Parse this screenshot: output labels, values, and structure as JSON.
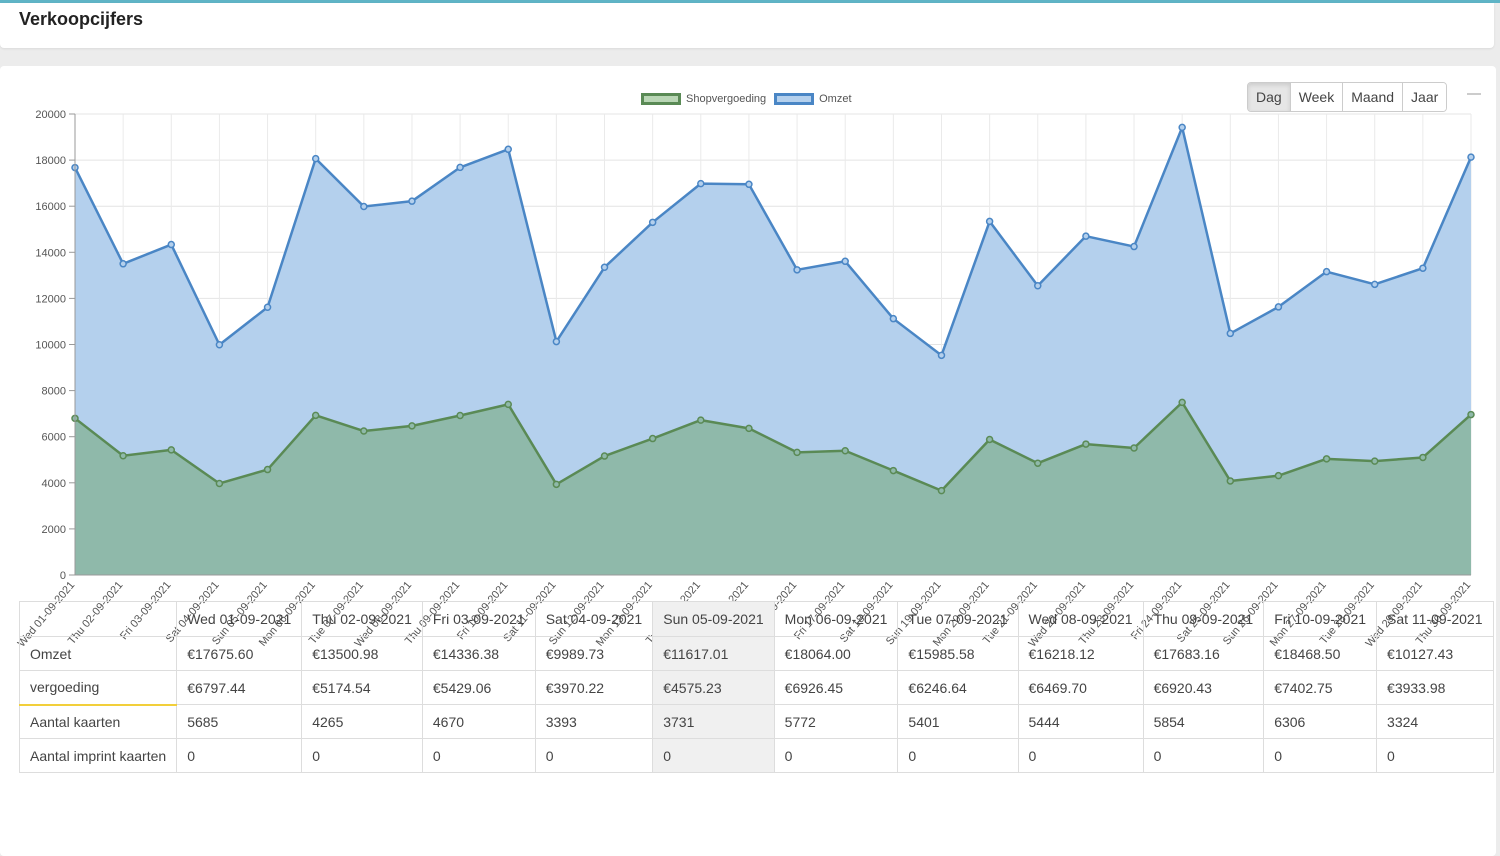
{
  "page": {
    "title": "Verkoopcijfers"
  },
  "period_buttons": [
    "Dag",
    "Week",
    "Maand",
    "Jaar"
  ],
  "chart_data": {
    "type": "area",
    "title": "",
    "xlabel": "",
    "ylabel": "",
    "ylim": [
      0,
      20000
    ],
    "yticks": [
      0,
      2000,
      4000,
      6000,
      8000,
      10000,
      12000,
      14000,
      16000,
      18000,
      20000
    ],
    "grid": true,
    "legend": "top-center",
    "categories": [
      "Wed 01-09-2021",
      "Thu 02-09-2021",
      "Fri 03-09-2021",
      "Sat 04-09-2021",
      "Sun 05-09-2021",
      "Mon 06-09-2021",
      "Tue 07-09-2021",
      "Wed 08-09-2021",
      "Thu 09-09-2021",
      "Fri 10-09-2021",
      "Sat 11-09-2021",
      "Sun 12-09-2021",
      "Mon 13-09-2021",
      "Tue 14-09-2021",
      "Wed 15-09-2021",
      "Thu 16-09-2021",
      "Fri 17-09-2021",
      "Sat 18-09-2021",
      "Sun 19-09-2021",
      "Mon 20-09-2021",
      "Tue 21-09-2021",
      "Wed 22-09-2021",
      "Thu 23-09-2021",
      "Fri 24-09-2021",
      "Sat 25-09-2021",
      "Sun 26-09-2021",
      "Mon 27-09-2021",
      "Tue 28-09-2021",
      "Wed 29-09-2021",
      "Thu 30-09-2021"
    ],
    "series": [
      {
        "name": "Omzet",
        "color": "#4a86c5",
        "fill": "#b4d0ed",
        "values": [
          17675.6,
          13500.98,
          14336.38,
          9989.73,
          11617.01,
          18064.0,
          15985.58,
          16218.12,
          17683.16,
          18468.5,
          10127.43,
          13350,
          15300,
          16980,
          16950,
          13240,
          13610,
          11120,
          9530,
          15340,
          12550,
          14700,
          14250,
          19420,
          10480,
          11630,
          13160,
          12610,
          13310,
          18130
        ]
      },
      {
        "name": "Shopvergoeding",
        "color": "#5a8a55",
        "fill": "#8fb9aa",
        "values": [
          6797.44,
          5174.54,
          5429.06,
          3970.22,
          4575.23,
          6926.45,
          6246.64,
          6469.7,
          6920.43,
          7402.75,
          3933.98,
          5160,
          5920,
          6720,
          6360,
          5320,
          5390,
          4530,
          3660,
          5880,
          4850,
          5680,
          5510,
          7490,
          4080,
          4310,
          5040,
          4940,
          5100,
          6960
        ]
      }
    ]
  },
  "table": {
    "columns": [
      "Wed 01-09-2021",
      "Thu 02-09-2021",
      "Fri 03-09-2021",
      "Sat 04-09-2021",
      "Sun 05-09-2021",
      "Mon 06-09-2021",
      "Tue 07-09-2021",
      "Wed 08-09-2021",
      "Thu 09-09-2021",
      "Fri 10-09-2021",
      "Sat 11-09-2021"
    ],
    "rows": [
      {
        "label": "Omzet",
        "values": [
          "€17675.60",
          "€13500.98",
          "€14336.38",
          "€9989.73",
          "€11617.01",
          "€18064.00",
          "€15985.58",
          "€16218.12",
          "€17683.16",
          "€18468.50",
          "€10127.43"
        ]
      },
      {
        "label": "vergoeding",
        "values": [
          "€6797.44",
          "€5174.54",
          "€5429.06",
          "€3970.22",
          "€4575.23",
          "€6926.45",
          "€6246.64",
          "€6469.70",
          "€6920.43",
          "€7402.75",
          "€3933.98"
        ]
      },
      {
        "label": "Aantal kaarten",
        "values": [
          "5685",
          "4265",
          "4670",
          "3393",
          "3731",
          "5772",
          "5401",
          "5444",
          "5854",
          "6306",
          "3324"
        ]
      },
      {
        "label": "Aantal imprint kaarten",
        "values": [
          "0",
          "0",
          "0",
          "0",
          "0",
          "0",
          "0",
          "0",
          "0",
          "0",
          "0"
        ]
      }
    ]
  }
}
